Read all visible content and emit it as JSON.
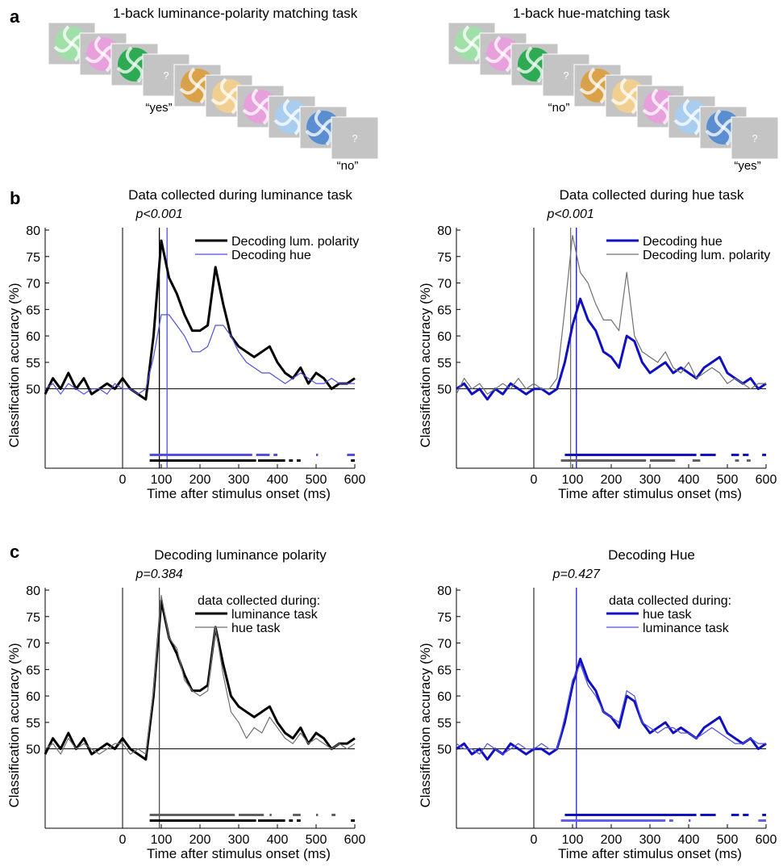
{
  "panel_labels": [
    "a",
    "b",
    "c"
  ],
  "panel_a": {
    "question_mark": "?",
    "sequences": [
      {
        "title": "1-back luminance-polarity matching task",
        "responses": [
          "“yes”",
          "“no”"
        ]
      },
      {
        "title": "1-back hue-matching task",
        "responses": [
          "“no”",
          "“yes”"
        ]
      }
    ]
  },
  "chart_data": [
    {
      "type": "line",
      "title": "Data collected during luminance task",
      "xlabel": "Time after stimulus onset (ms)",
      "ylabel": "Classification accuracy (%)",
      "annotation": "p<0.001",
      "legend": "upper right",
      "xlim": [
        -200,
        600
      ],
      "xticks": [
        0,
        100,
        200,
        300,
        400,
        500,
        600
      ],
      "ylim": [
        35,
        80
      ],
      "yticks": [
        50,
        55,
        60,
        65,
        70,
        75,
        80
      ],
      "reference_x": 0,
      "reference_y": 50,
      "x": [
        -200,
        -180,
        -160,
        -140,
        -120,
        -100,
        -80,
        -60,
        -40,
        -20,
        0,
        20,
        40,
        60,
        80,
        100,
        120,
        140,
        160,
        180,
        200,
        220,
        240,
        260,
        280,
        300,
        320,
        340,
        360,
        380,
        400,
        420,
        440,
        460,
        480,
        500,
        520,
        540,
        560,
        580,
        600
      ],
      "series": [
        {
          "name": "Decoding lum. polarity",
          "color": "#000000",
          "linewidth": 3,
          "values": [
            49,
            52,
            50,
            53,
            50,
            52,
            49,
            50,
            51,
            50,
            52,
            50,
            49,
            48,
            60,
            78,
            71,
            68,
            64,
            61,
            61,
            62,
            73,
            66,
            60,
            58,
            57,
            56,
            57,
            58,
            55,
            53,
            52,
            54,
            51,
            53,
            52,
            50,
            51,
            51,
            52
          ]
        },
        {
          "name": "Decoding hue",
          "color": "#5050e0",
          "linewidth": 1.2,
          "values": [
            50,
            51,
            49,
            51,
            50,
            49,
            50,
            50,
            49,
            51,
            50,
            50,
            49,
            50,
            56,
            64,
            64,
            62,
            60,
            57,
            57,
            58,
            62,
            62,
            60,
            57,
            55,
            54,
            53,
            53,
            52,
            51,
            52,
            53,
            52,
            51,
            51,
            52,
            51,
            51,
            51
          ]
        }
      ],
      "peaks": [
        {
          "x": 95,
          "color": "#000000"
        },
        {
          "x": 115,
          "color": "#5050e0"
        }
      ],
      "significance": [
        {
          "color": "#5050e0",
          "ranges": [
            [
              70,
              335
            ],
            [
              345,
              380
            ],
            [
              390,
              400
            ],
            [
              500,
              505
            ],
            [
              580,
              600
            ]
          ]
        },
        {
          "color": "#000000",
          "ranges": [
            [
              70,
              345
            ],
            [
              350,
              420
            ],
            [
              430,
              440
            ],
            [
              450,
              460
            ],
            [
              590,
              600
            ]
          ]
        }
      ]
    },
    {
      "type": "line",
      "title": "Data collected during hue task",
      "xlabel": "Time after stimulus onset (ms)",
      "ylabel": "Classification accuracy (%)",
      "annotation": "p<0.001",
      "legend": "upper right",
      "xlim": [
        -200,
        600
      ],
      "xticks": [
        0,
        100,
        200,
        300,
        400,
        500,
        600
      ],
      "ylim": [
        35,
        80
      ],
      "yticks": [
        50,
        55,
        60,
        65,
        70,
        75,
        80
      ],
      "reference_x": 0,
      "reference_y": 50,
      "x": [
        -200,
        -180,
        -160,
        -140,
        -120,
        -100,
        -80,
        -60,
        -40,
        -20,
        0,
        20,
        40,
        60,
        80,
        100,
        120,
        140,
        160,
        180,
        200,
        220,
        240,
        260,
        280,
        300,
        320,
        340,
        360,
        380,
        400,
        420,
        440,
        460,
        480,
        500,
        520,
        540,
        560,
        580,
        600
      ],
      "series": [
        {
          "name": "Decoding hue",
          "color": "#1010c0",
          "linewidth": 3,
          "values": [
            50,
            51,
            49,
            50,
            48,
            50,
            49,
            51,
            50,
            49,
            50,
            50,
            49,
            50,
            55,
            62,
            67,
            63,
            61,
            57,
            56,
            54,
            60,
            59,
            55,
            53,
            54,
            55,
            53,
            54,
            53,
            52,
            54,
            55,
            56,
            53,
            52,
            51,
            52,
            50,
            51
          ]
        },
        {
          "name": "Decoding lum. polarity",
          "color": "#707070",
          "linewidth": 1.2,
          "values": [
            49,
            52,
            50,
            51,
            49,
            50,
            51,
            50,
            52,
            50,
            51,
            50,
            50,
            52,
            65,
            79,
            72,
            70,
            66,
            63,
            63,
            61,
            72,
            60,
            57,
            56,
            55,
            57,
            54,
            53,
            55,
            52,
            53,
            54,
            53,
            51,
            52,
            51,
            50,
            51,
            51
          ]
        }
      ],
      "peaks": [
        {
          "x": 95,
          "color": "#707070"
        },
        {
          "x": 110,
          "color": "#1010c0"
        }
      ],
      "significance": [
        {
          "color": "#1010c0",
          "ranges": [
            [
              80,
              420
            ],
            [
              430,
              470
            ],
            [
              510,
              530
            ],
            [
              540,
              555
            ],
            [
              590,
              600
            ]
          ]
        },
        {
          "color": "#606060",
          "ranges": [
            [
              70,
              290
            ],
            [
              300,
              365
            ],
            [
              410,
              430
            ],
            [
              520,
              530
            ],
            [
              550,
              560
            ]
          ]
        }
      ]
    },
    {
      "type": "line",
      "title": "Decoding luminance polarity",
      "xlabel": "Time after stimulus onset (ms)",
      "ylabel": "Classification accuracy (%)",
      "annotation": "p=0.384",
      "legend": "upper right",
      "legend_title": "data collected during:",
      "xlim": [
        -200,
        600
      ],
      "xticks": [
        0,
        100,
        200,
        300,
        400,
        500,
        600
      ],
      "ylim": [
        35,
        80
      ],
      "yticks": [
        50,
        55,
        60,
        65,
        70,
        75,
        80
      ],
      "reference_x": 0,
      "reference_y": 50,
      "x": [
        -200,
        -180,
        -160,
        -140,
        -120,
        -100,
        -80,
        -60,
        -40,
        -20,
        0,
        20,
        40,
        60,
        80,
        100,
        120,
        140,
        160,
        180,
        200,
        220,
        240,
        260,
        280,
        300,
        320,
        340,
        360,
        380,
        400,
        420,
        440,
        460,
        480,
        500,
        520,
        540,
        560,
        580,
        600
      ],
      "series": [
        {
          "name": "luminance task",
          "color": "#000000",
          "linewidth": 3,
          "values": [
            49,
            52,
            50,
            53,
            50,
            52,
            49,
            50,
            51,
            50,
            52,
            50,
            49,
            48,
            60,
            78,
            71,
            68,
            64,
            61,
            61,
            62,
            73,
            66,
            60,
            58,
            57,
            56,
            57,
            58,
            55,
            53,
            52,
            54,
            51,
            53,
            52,
            50,
            51,
            51,
            52
          ]
        },
        {
          "name": "hue task",
          "color": "#707070",
          "linewidth": 1.2,
          "values": [
            50,
            51,
            49,
            52,
            50,
            51,
            50,
            49,
            50,
            51,
            51,
            49,
            50,
            49,
            61,
            79,
            71,
            69,
            63,
            61,
            60,
            61,
            73,
            64,
            57,
            55,
            52,
            54,
            53,
            56,
            54,
            52,
            51,
            53,
            51,
            52,
            51,
            50,
            51,
            50,
            51
          ]
        }
      ],
      "peaks": [
        {
          "x": 95,
          "color": "#505050"
        }
      ],
      "significance": [
        {
          "color": "#606060",
          "ranges": [
            [
              70,
              290
            ],
            [
              300,
              365
            ],
            [
              380,
              385
            ],
            [
              440,
              460
            ],
            [
              500,
              505
            ],
            [
              540,
              550
            ]
          ]
        },
        {
          "color": "#000000",
          "ranges": [
            [
              70,
              345
            ],
            [
              350,
              420
            ],
            [
              430,
              440
            ],
            [
              450,
              460
            ],
            [
              590,
              600
            ]
          ]
        }
      ]
    },
    {
      "type": "line",
      "title": "Decoding Hue",
      "xlabel": "Time after stimulus onset (ms)",
      "ylabel": "Classification accuracy (%)",
      "annotation": "p=0.427",
      "legend": "upper right",
      "legend_title": "data collected during:",
      "xlim": [
        -200,
        600
      ],
      "xticks": [
        0,
        100,
        200,
        300,
        400,
        500,
        600
      ],
      "ylim": [
        35,
        80
      ],
      "yticks": [
        50,
        55,
        60,
        65,
        70,
        75,
        80
      ],
      "reference_x": 0,
      "reference_y": 50,
      "x": [
        -200,
        -180,
        -160,
        -140,
        -120,
        -100,
        -80,
        -60,
        -40,
        -20,
        0,
        20,
        40,
        60,
        80,
        100,
        120,
        140,
        160,
        180,
        200,
        220,
        240,
        260,
        280,
        300,
        320,
        340,
        360,
        380,
        400,
        420,
        440,
        460,
        480,
        500,
        520,
        540,
        560,
        580,
        600
      ],
      "series": [
        {
          "name": "hue task",
          "color": "#1010c0",
          "linewidth": 3,
          "values": [
            50,
            51,
            49,
            50,
            48,
            50,
            49,
            51,
            50,
            49,
            50,
            50,
            49,
            50,
            55,
            62,
            67,
            63,
            61,
            57,
            56,
            54,
            60,
            59,
            55,
            53,
            54,
            55,
            53,
            54,
            53,
            52,
            54,
            55,
            56,
            53,
            52,
            51,
            52,
            50,
            51
          ]
        },
        {
          "name": "luminance task",
          "color": "#5050e0",
          "linewidth": 1.2,
          "values": [
            51,
            50,
            50,
            49,
            51,
            50,
            49,
            50,
            51,
            50,
            50,
            51,
            50,
            50,
            56,
            63,
            66,
            62,
            60,
            57,
            56,
            55,
            61,
            60,
            55,
            54,
            53,
            54,
            54,
            53,
            53,
            52,
            53,
            54,
            53,
            52,
            51,
            51,
            52,
            51,
            51
          ]
        }
      ],
      "peaks": [
        {
          "x": 110,
          "color": "#2020d0"
        }
      ],
      "significance": [
        {
          "color": "#1010c0",
          "ranges": [
            [
              80,
              420
            ],
            [
              430,
              470
            ],
            [
              510,
              530
            ],
            [
              540,
              555
            ],
            [
              590,
              600
            ]
          ]
        },
        {
          "color": "#6060f0",
          "ranges": [
            [
              70,
              340
            ],
            [
              350,
              360
            ],
            [
              400,
              405
            ],
            [
              580,
              600
            ]
          ]
        }
      ]
    }
  ]
}
